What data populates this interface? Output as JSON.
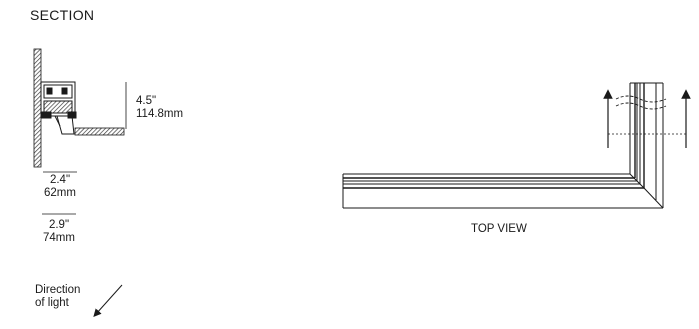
{
  "section": {
    "title": "SECTION",
    "height_in": "4.5\"",
    "height_mm": "114.8mm",
    "width_inner_in": "2.4\"",
    "width_inner_mm": "62mm",
    "width_outer_in": "2.9\"",
    "width_outer_mm": "74mm",
    "direction_line1": "Direction",
    "direction_line2": "of light"
  },
  "top_view": {
    "label": "TOP VIEW"
  },
  "colors": {
    "stroke": "#1a1a1a",
    "hatch": "#3a3a3a",
    "fill": "#ffffff"
  }
}
